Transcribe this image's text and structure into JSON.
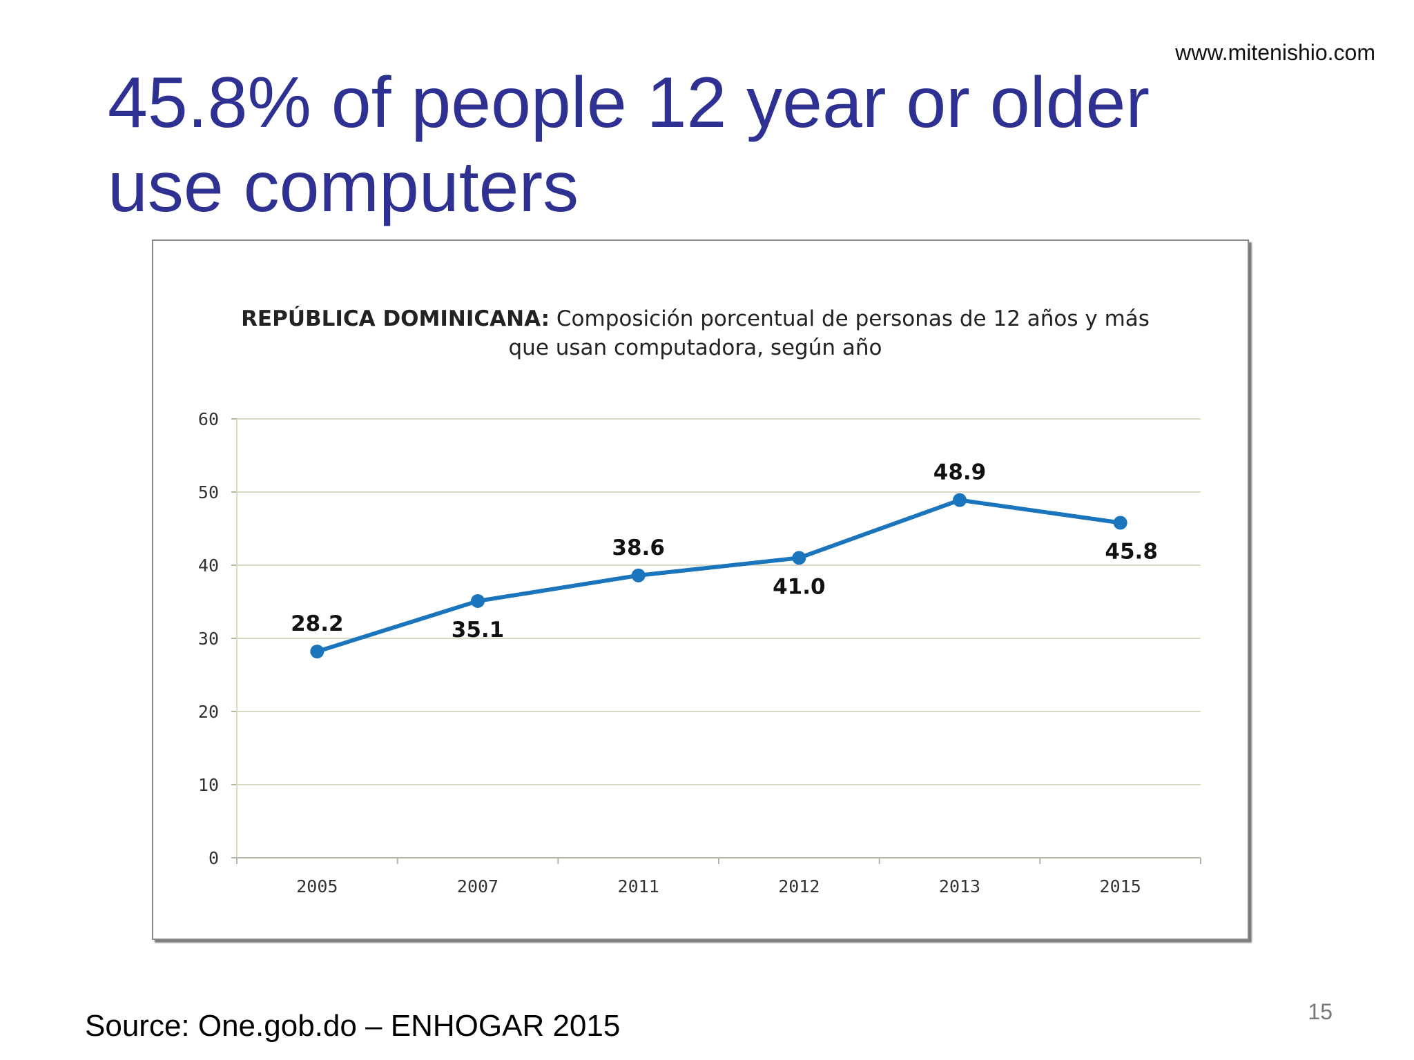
{
  "website": "www.mitenishio.com",
  "title": "45.8% of people 12 year or older use computers",
  "source": "Source:  One.gob.do – ENHOGAR 2015",
  "page_number": "15",
  "colors": {
    "title": "#2e3192",
    "series": "#1a75bc",
    "grid": "#d9d9c4"
  },
  "chart_data": {
    "type": "line",
    "title_bold": "REPÚBLICA DOMINICANA:",
    "title_rest": " Composición porcentual de personas de 12 años y más que usan computadora, según año",
    "categories": [
      "2005",
      "2007",
      "2011",
      "2012",
      "2013",
      "2015"
    ],
    "series": [
      {
        "values": [
          28.2,
          35.1,
          38.6,
          41.0,
          48.9,
          45.8
        ],
        "labels": [
          "28.2",
          "35.1",
          "38.6",
          "41.0",
          "48.9",
          "45.8"
        ]
      }
    ],
    "y_ticks": [
      "0",
      "10",
      "20",
      "30",
      "40",
      "50",
      "60"
    ],
    "ylim": [
      0,
      60
    ],
    "grid": true,
    "legend": "none"
  }
}
